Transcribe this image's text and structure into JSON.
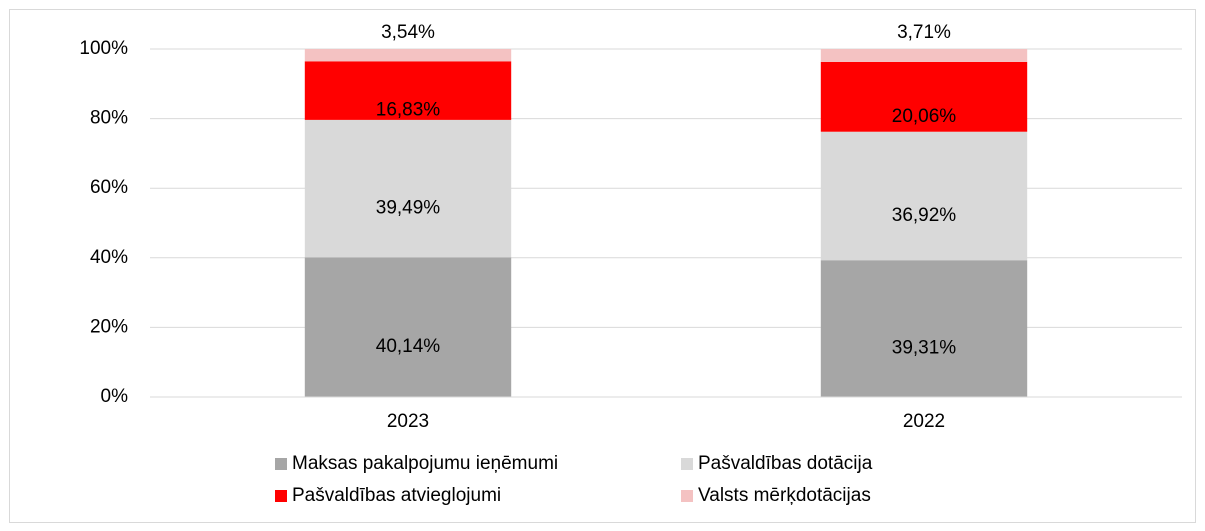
{
  "chart_data": {
    "type": "stacked_bar",
    "categories": [
      "2023",
      "2022"
    ],
    "series": [
      {
        "name": "Maksas pakalpojumu ieņēmumi",
        "color": "#a6a6a6",
        "values": [
          40.14,
          39.31
        ],
        "value_labels": [
          "40,14%",
          "39,31%"
        ]
      },
      {
        "name": "Pašvaldības dotācija",
        "color": "#d9d9d9",
        "values": [
          39.49,
          36.92
        ],
        "value_labels": [
          "39,49%",
          "36,92%"
        ]
      },
      {
        "name": "Pašvaldības atvieglojumi",
        "color": "#ff0000",
        "values": [
          16.83,
          20.06
        ],
        "value_labels": [
          "16,83%",
          "20,06%"
        ]
      },
      {
        "name": "Valsts mērķdotācijas",
        "color": "#f4c2c2",
        "values": [
          3.54,
          3.71
        ],
        "value_labels": [
          "3,54%",
          "3,71%"
        ]
      }
    ],
    "ylim": [
      0,
      100
    ],
    "yticks": [
      {
        "value": 0,
        "label": "0%"
      },
      {
        "value": 20,
        "label": "20%"
      },
      {
        "value": 40,
        "label": "40%"
      },
      {
        "value": 60,
        "label": "60%"
      },
      {
        "value": 80,
        "label": "80%"
      },
      {
        "value": 100,
        "label": "100%"
      }
    ],
    "grid": true,
    "legend": "bottom"
  }
}
